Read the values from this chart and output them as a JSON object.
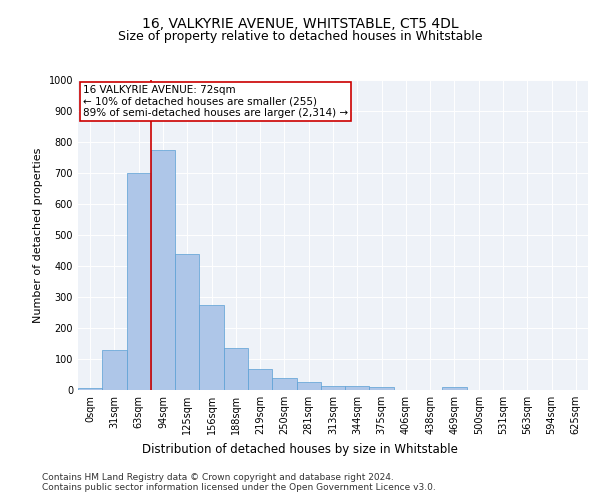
{
  "title": "16, VALKYRIE AVENUE, WHITSTABLE, CT5 4DL",
  "subtitle": "Size of property relative to detached houses in Whitstable",
  "xlabel": "Distribution of detached houses by size in Whitstable",
  "ylabel": "Number of detached properties",
  "categories": [
    "0sqm",
    "31sqm",
    "63sqm",
    "94sqm",
    "125sqm",
    "156sqm",
    "188sqm",
    "219sqm",
    "250sqm",
    "281sqm",
    "313sqm",
    "344sqm",
    "375sqm",
    "406sqm",
    "438sqm",
    "469sqm",
    "500sqm",
    "531sqm",
    "563sqm",
    "594sqm",
    "625sqm"
  ],
  "bar_heights": [
    8,
    128,
    700,
    775,
    440,
    275,
    135,
    68,
    40,
    25,
    13,
    13,
    9,
    0,
    0,
    10,
    0,
    0,
    0,
    0,
    0
  ],
  "bar_color": "#aec6e8",
  "bar_edge_color": "#5a9fd4",
  "vline_x_idx": 2,
  "vline_color": "#cc0000",
  "annotation_line1": "16 VALKYRIE AVENUE: 72sqm",
  "annotation_line2": "← 10% of detached houses are smaller (255)",
  "annotation_line3": "89% of semi-detached houses are larger (2,314) →",
  "annotation_box_color": "#ffffff",
  "annotation_box_edge_color": "#cc0000",
  "ylim": [
    0,
    1000
  ],
  "yticks": [
    0,
    100,
    200,
    300,
    400,
    500,
    600,
    700,
    800,
    900,
    1000
  ],
  "background_color": "#eef2f8",
  "footer_line1": "Contains HM Land Registry data © Crown copyright and database right 2024.",
  "footer_line2": "Contains public sector information licensed under the Open Government Licence v3.0.",
  "title_fontsize": 10,
  "subtitle_fontsize": 9,
  "xlabel_fontsize": 8.5,
  "ylabel_fontsize": 8,
  "tick_fontsize": 7,
  "annotation_fontsize": 7.5,
  "footer_fontsize": 6.5
}
